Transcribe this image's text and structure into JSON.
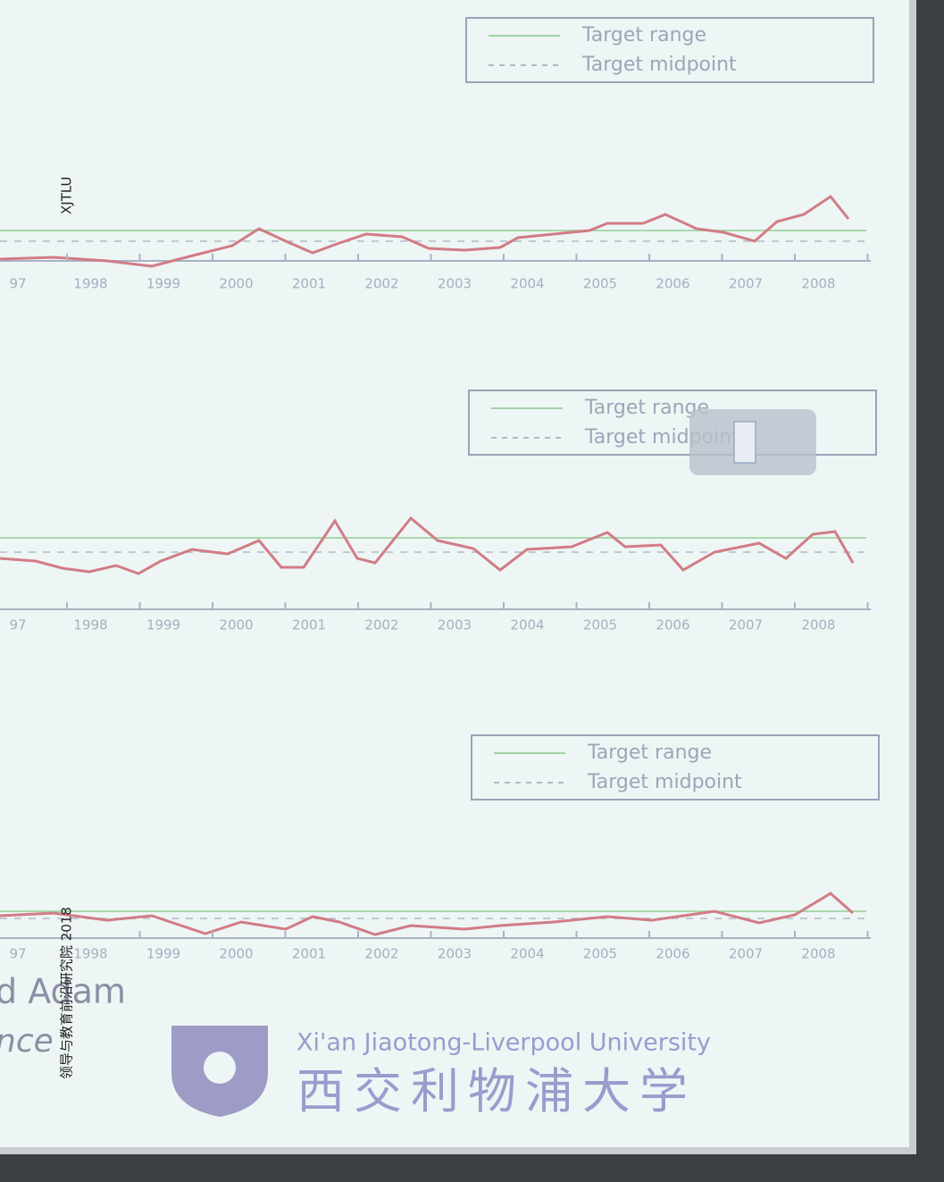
{
  "watermark": {
    "top": "XJTLU",
    "bottom": "领导与教育前沿研究院 2018"
  },
  "panels": [
    {
      "legend": [
        "Target range",
        "Target midpoint"
      ],
      "years": [
        "97",
        "1998",
        "1999",
        "2000",
        "2001",
        "2002",
        "2003",
        "2004",
        "2005",
        "2006",
        "2007",
        "2008"
      ]
    },
    {
      "legend": [
        "Target range",
        "Target midpoint"
      ],
      "years": [
        "97",
        "1998",
        "1999",
        "2000",
        "2001",
        "2002",
        "2003",
        "2004",
        "2005",
        "2006",
        "2007",
        "2008"
      ]
    },
    {
      "legend": [
        "Target range",
        "Target midpoint"
      ],
      "years": [
        "97",
        "1998",
        "1999",
        "2000",
        "2001",
        "2002",
        "2003",
        "2004",
        "2005",
        "2006",
        "2007",
        "2008"
      ]
    }
  ],
  "footer": {
    "name": "d Adam",
    "subtitle": "nce",
    "university_en": "Xi'an Jiaotong-Liverpool University",
    "university_cn": "西交利物浦大学"
  }
}
